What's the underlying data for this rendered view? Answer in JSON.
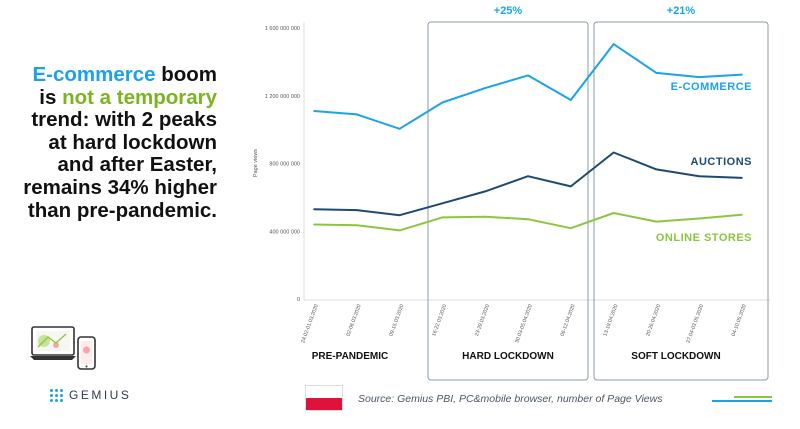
{
  "headline": {
    "part1": "E-commerce",
    "part2": " boom is ",
    "part3": "not a temporary",
    "part4": " trend: with 2 peaks at hard lockdown and after Easter, remains 34% higher than pre-pandemic."
  },
  "logo": {
    "name": "GEMIUS"
  },
  "source": "Source: Gemius PBI, PC&mobile browser, number of Page Views",
  "colors": {
    "ecommerce": "#1aa3e8",
    "auctions": "#1d4a73",
    "online_stores": "#8cc63f",
    "period_box": "#8a9aa8",
    "period_label": "#1aa3e8"
  },
  "chart_data": {
    "type": "line",
    "ylabel": "Page views",
    "ylim": [
      0,
      1600000000
    ],
    "yticks": [
      0,
      400000000,
      800000000,
      1200000000,
      1600000000
    ],
    "ytick_labels": [
      "0",
      "400 000 000",
      "800 000 000",
      "1 200 000 000",
      "1 600 000 000"
    ],
    "categories": [
      "24.02-01.03.2020",
      "02-08.03.2020",
      "09-15.03.2020",
      "16-22.03.2020",
      "23-29.03.2020",
      "30.03-05.04.2020",
      "06-12.04.2020",
      "13-19.04.2020",
      "20-26.04.2020",
      "27.04-03.05.2020",
      "04-10.05.2020"
    ],
    "series": [
      {
        "name": "E-COMMERCE",
        "values": [
          1110000000,
          1090000000,
          1005000000,
          1160000000,
          1245000000,
          1320000000,
          1175000000,
          1505000000,
          1335000000,
          1310000000,
          1325000000
        ]
      },
      {
        "name": "AUCTIONS",
        "values": [
          530000000,
          525000000,
          495000000,
          565000000,
          635000000,
          725000000,
          665000000,
          865000000,
          765000000,
          725000000,
          715000000
        ]
      },
      {
        "name": "ONLINE STORES",
        "values": [
          440000000,
          436000000,
          405000000,
          482000000,
          486000000,
          471000000,
          418000000,
          508000000,
          457000000,
          475000000,
          497000000
        ]
      }
    ],
    "periods": [
      {
        "label": "PRE-PANDEMIC",
        "growth": ""
      },
      {
        "label": "HARD LOCKDOWN",
        "growth": "+25%"
      },
      {
        "label": "SOFT LOCKDOWN",
        "growth": "+21%"
      }
    ]
  }
}
